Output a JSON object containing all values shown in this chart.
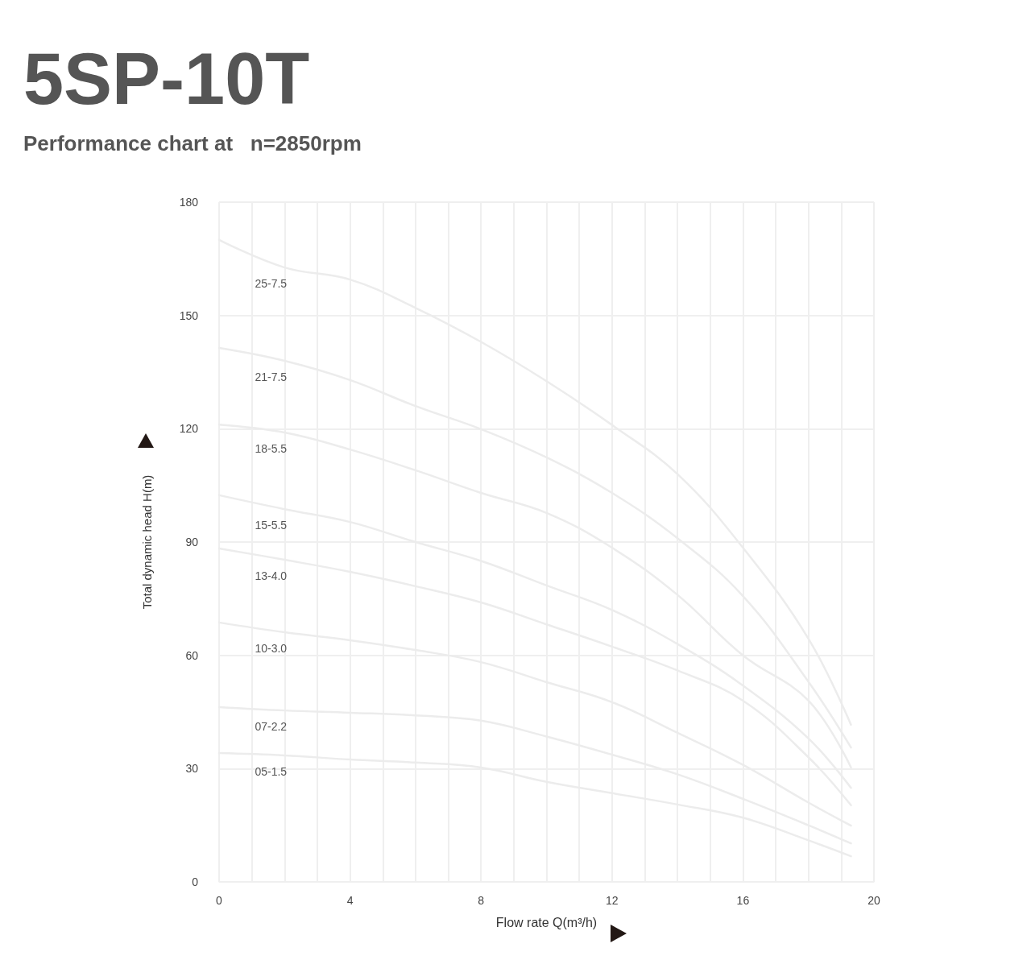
{
  "chart_data": {
    "type": "line",
    "title": "5SP-10T",
    "subtitle": "Performance chart at   n=2850rpm",
    "xlabel": "Flow rate Q(m³/h)",
    "ylabel": "Total dynamic head H(m)",
    "x": [
      0,
      2,
      4,
      6,
      8,
      10,
      12,
      14,
      16,
      18,
      19.3
    ],
    "series": [
      {
        "name": "25-7.5",
        "color": "#ececec",
        "values": [
          170,
          162.7,
          159.5,
          152,
          143,
          132.6,
          121,
          108,
          88.5,
          64.4,
          41.6
        ]
      },
      {
        "name": "21-7.5",
        "color": "#ececec",
        "values": [
          141.4,
          138,
          132.9,
          126,
          119.9,
          112.4,
          103,
          91,
          75.7,
          53,
          35.6
        ]
      },
      {
        "name": "18-5.5",
        "color": "#ececec",
        "values": [
          121.1,
          119,
          114.5,
          109,
          103,
          97.7,
          88.5,
          76,
          60,
          48,
          30.3
        ]
      },
      {
        "name": "15-5.5",
        "color": "#ececec",
        "values": [
          102.4,
          98.7,
          95.3,
          90,
          85,
          78.5,
          72,
          63,
          52,
          38,
          24.9
        ]
      },
      {
        "name": "13-4.0",
        "color": "#ececec",
        "values": [
          88.3,
          85.3,
          82.1,
          78.3,
          74,
          68.2,
          62.3,
          56,
          48,
          33,
          20.3
        ]
      },
      {
        "name": "10-3.0",
        "color": "#ececec",
        "values": [
          68.7,
          66.1,
          64,
          61.4,
          58.2,
          52.9,
          47.6,
          39.5,
          31,
          21,
          14.9
        ]
      },
      {
        "name": "07-2.2",
        "color": "#ececec",
        "values": [
          46.3,
          45.4,
          44.8,
          44.1,
          42.7,
          38.5,
          33.7,
          28.5,
          22,
          15,
          10.2
        ]
      },
      {
        "name": "05-1.5",
        "color": "#ececec",
        "values": [
          34.1,
          33.5,
          32.4,
          31.6,
          30.3,
          26.5,
          23.5,
          20.5,
          17,
          11,
          6.8
        ]
      }
    ],
    "xlim": [
      0,
      20
    ],
    "xticks": [
      0,
      {
        "value": 1,
        "label": null
      },
      {
        "value": 2,
        "label": null
      },
      {
        "value": 3,
        "label": null
      },
      4,
      {
        "value": 5,
        "label": null
      },
      {
        "value": 6,
        "label": null
      },
      {
        "value": 7,
        "label": null
      },
      8,
      {
        "value": 9,
        "label": null
      },
      {
        "value": 10,
        "label": null
      },
      {
        "value": 11,
        "label": null
      },
      12,
      {
        "value": 13,
        "label": null
      },
      {
        "value": 14,
        "label": null
      },
      {
        "value": 15,
        "label": null
      },
      16,
      {
        "value": 17,
        "label": null
      },
      {
        "value": 18,
        "label": null
      },
      {
        "value": 19,
        "label": null
      },
      20
    ],
    "ylim": [
      0,
      180
    ],
    "yticks": [
      0,
      30,
      60,
      90,
      120,
      150,
      180
    ],
    "grid": true,
    "marker": "none",
    "line_style": "solid"
  }
}
